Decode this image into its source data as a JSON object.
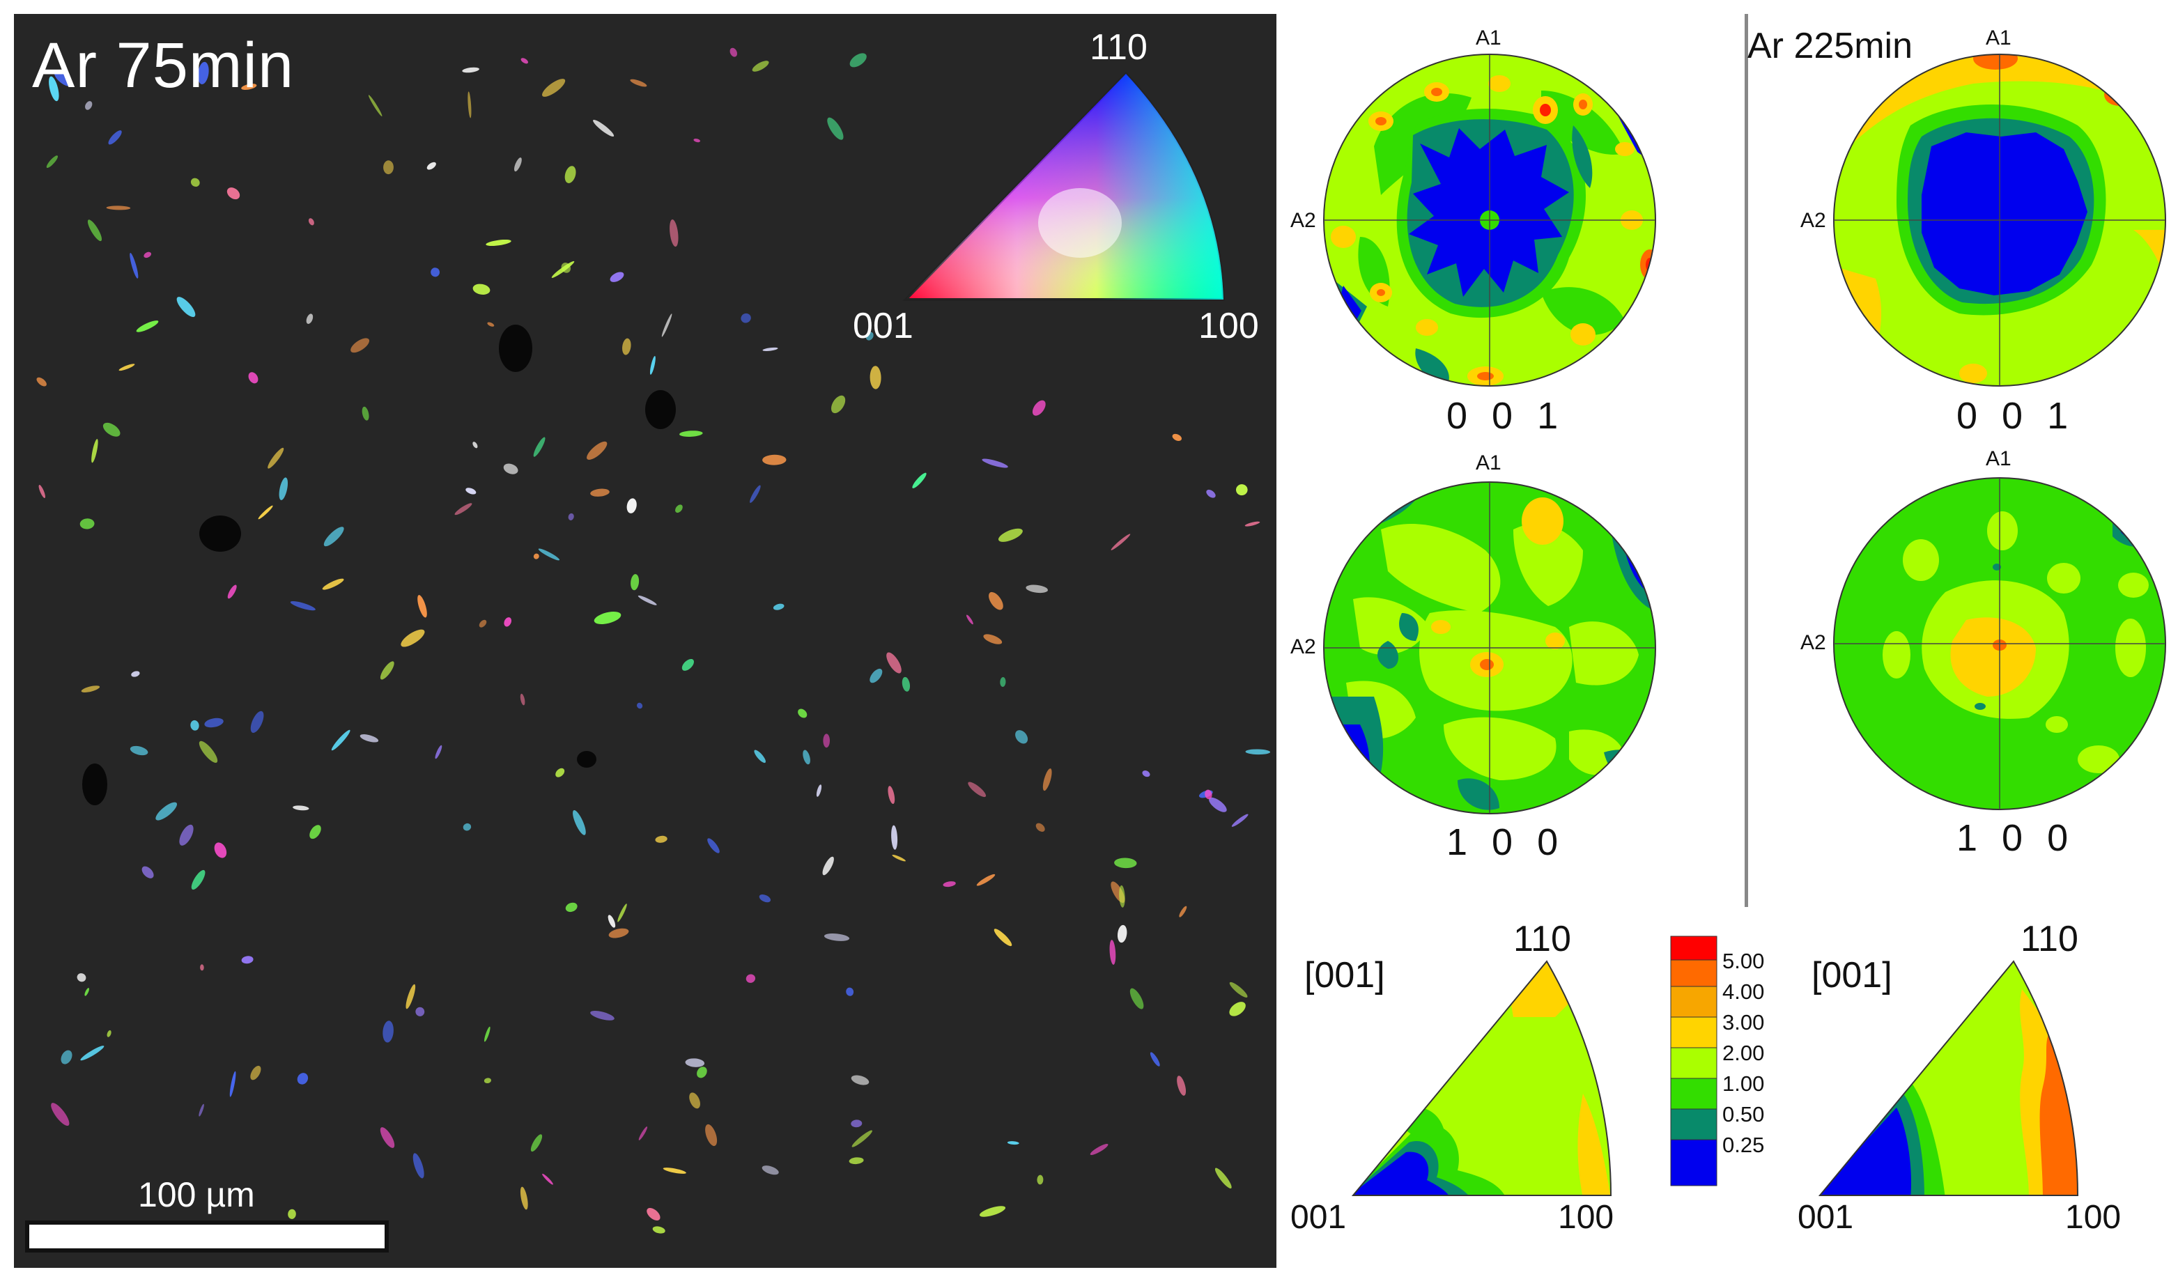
{
  "map": {
    "title": "Ar 75min",
    "ipf_key": {
      "label_110": "110",
      "label_001": "001",
      "label_100": "100"
    },
    "scale_label": "100 µm"
  },
  "left_set": {
    "title": "",
    "pf_001": {
      "label": "0 0 1",
      "a1": "A1",
      "a2": "A2"
    },
    "pf_100": {
      "label": "1 0 0",
      "a1": "A1",
      "a2": "A2"
    },
    "ipf": {
      "dir": "[001]",
      "label_110": "110",
      "label_001": "001",
      "label_100": "100"
    }
  },
  "right_set": {
    "title": "Ar 225min",
    "pf_001": {
      "label": "0 0 1",
      "a1": "A1",
      "a2": "A2"
    },
    "pf_100": {
      "label": "1 0 0",
      "a1": "A1",
      "a2": "A2"
    },
    "ipf": {
      "dir": "[001]",
      "label_110": "110",
      "label_001": "001",
      "label_100": "100"
    }
  },
  "legend": {
    "levels": [
      "5.00",
      "4.00",
      "3.00",
      "2.00",
      "1.00",
      "0.50",
      "0.25"
    ],
    "colors": [
      "#ff0000",
      "#ff6a00",
      "#f7a600",
      "#ffd400",
      "#aaff00",
      "#33dd00",
      "#088a6a",
      "#0000ee"
    ]
  }
}
